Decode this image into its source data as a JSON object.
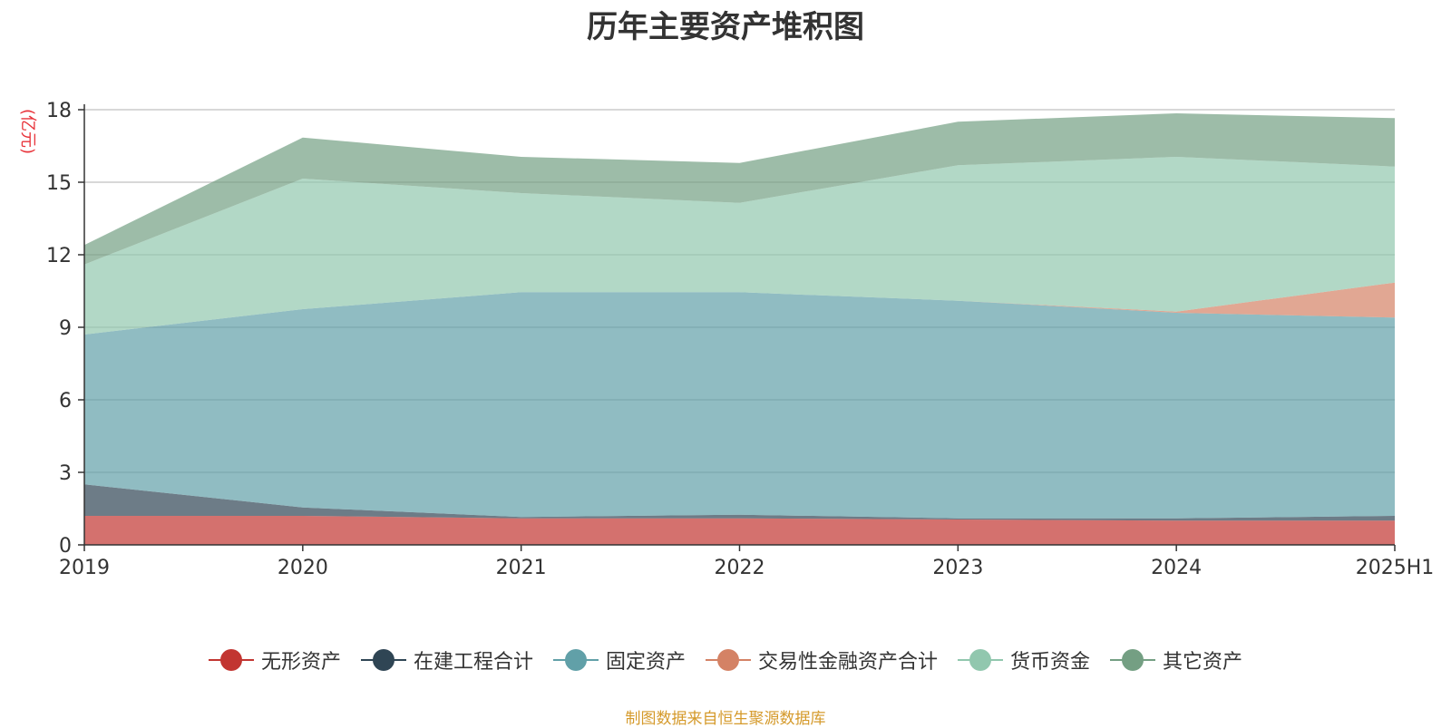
{
  "chart_data": {
    "type": "area",
    "stacked": true,
    "title": "历年主要资产堆积图",
    "ylabel": "(亿元)",
    "xlabel": "",
    "categories": [
      "2019",
      "2020",
      "2021",
      "2022",
      "2023",
      "2024",
      "2025H1"
    ],
    "ylim": [
      0,
      18
    ],
    "yticks": [
      "0",
      "3",
      "6",
      "9",
      "12",
      "15",
      "18"
    ],
    "grid": true,
    "legend_position": "bottom",
    "series": [
      {
        "name": "无形资产",
        "color": "#c23531",
        "values": [
          1.2,
          1.2,
          1.1,
          1.1,
          1.05,
          1.0,
          1.0
        ]
      },
      {
        "name": "在建工程合计",
        "color": "#2f4554",
        "values": [
          1.3,
          0.35,
          0.05,
          0.15,
          0.05,
          0.1,
          0.2
        ]
      },
      {
        "name": "固定资产",
        "color": "#61a0a8",
        "values": [
          6.2,
          8.2,
          9.3,
          9.2,
          9.0,
          8.5,
          8.2
        ]
      },
      {
        "name": "交易性金融资产合计",
        "color": "#d48265",
        "values": [
          0,
          0,
          0,
          0,
          0,
          0.05,
          1.45
        ]
      },
      {
        "name": "货币资金",
        "color": "#91c7ae",
        "values": [
          2.9,
          5.4,
          4.1,
          3.7,
          5.6,
          6.4,
          4.8
        ]
      },
      {
        "name": "其它资产",
        "color": "#749f83",
        "values": [
          0.8,
          1.7,
          1.5,
          1.65,
          1.8,
          1.8,
          2.0
        ]
      }
    ]
  },
  "source_note": "制图数据来自恒生聚源数据库"
}
